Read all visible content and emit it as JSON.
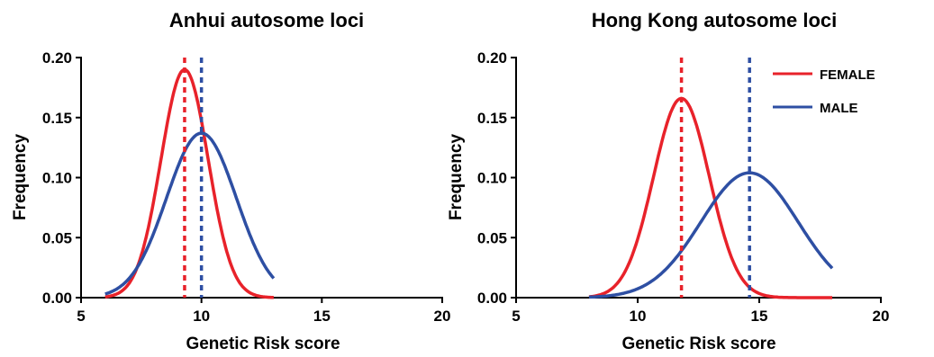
{
  "colors": {
    "female": "#e8222a",
    "male": "#2e4fa3"
  },
  "chart_data": [
    {
      "type": "line",
      "title": "Anhui autosome loci",
      "xlabel": "Genetic Risk score",
      "ylabel": "Frequency",
      "xlim": [
        5,
        20
      ],
      "ylim": [
        0,
        0.2
      ],
      "xticks": [
        5,
        10,
        15,
        20
      ],
      "yticks": [
        "0.00",
        "0.05",
        "0.10",
        "0.15",
        "0.20"
      ],
      "series": [
        {
          "name": "FEMALE",
          "color": "#e8222a",
          "mean": 9.3,
          "peak": 0.19,
          "sd": 0.98,
          "x_range": [
            6.0,
            13.0
          ],
          "mean_line": 9.3
        },
        {
          "name": "MALE",
          "color": "#2e4fa3",
          "mean": 10.0,
          "peak": 0.137,
          "sd": 1.45,
          "x_range": [
            6.0,
            13.0
          ],
          "mean_line": 10.0
        }
      ]
    },
    {
      "type": "line",
      "title": "Hong Kong autosome loci",
      "xlabel": "Genetic Risk score",
      "ylabel": "Frequency",
      "xlim": [
        5,
        20
      ],
      "ylim": [
        0,
        0.2
      ],
      "xticks": [
        5,
        10,
        15,
        20
      ],
      "yticks": [
        "0.00",
        "0.05",
        "0.10",
        "0.15",
        "0.20"
      ],
      "legend": [
        {
          "label": "FEMALE",
          "color": "#e8222a"
        },
        {
          "label": "MALE",
          "color": "#2e4fa3"
        }
      ],
      "legend_position": "top-right",
      "series": [
        {
          "name": "FEMALE",
          "color": "#e8222a",
          "mean": 11.8,
          "peak": 0.166,
          "sd": 1.15,
          "x_range": [
            8.0,
            18.0
          ],
          "mean_line": 11.8
        },
        {
          "name": "MALE",
          "color": "#2e4fa3",
          "mean": 14.6,
          "peak": 0.104,
          "sd": 2.0,
          "x_range": [
            8.0,
            18.0
          ],
          "mean_line": 14.6
        }
      ]
    }
  ]
}
